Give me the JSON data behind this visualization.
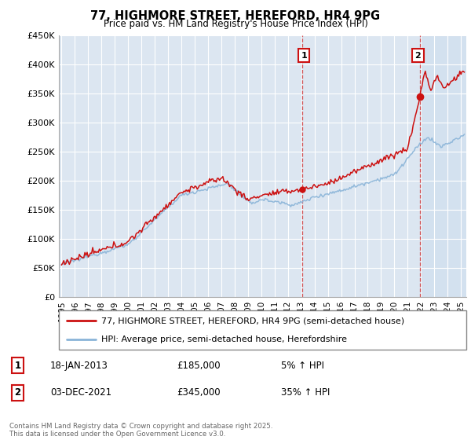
{
  "title": "77, HIGHMORE STREET, HEREFORD, HR4 9PG",
  "subtitle": "Price paid vs. HM Land Registry's House Price Index (HPI)",
  "ylim": [
    0,
    450000
  ],
  "sale1_year": 2013.05,
  "sale1_price": 185000,
  "sale2_year": 2021.92,
  "sale2_price": 345000,
  "hpi_color": "#8ab4d8",
  "price_color": "#cc1111",
  "legend_line1": "77, HIGHMORE STREET, HEREFORD, HR4 9PG (semi-detached house)",
  "legend_line2": "HPI: Average price, semi-detached house, Herefordshire",
  "footer": "Contains HM Land Registry data © Crown copyright and database right 2025.\nThis data is licensed under the Open Government Licence v3.0.",
  "bg_color": "#dce6f1",
  "shade_color": "#c5d8ee",
  "grid_color": "#ffffff",
  "ann1_date": "18-JAN-2013",
  "ann1_price": "£185,000",
  "ann1_hpi": "5% ↑ HPI",
  "ann2_date": "03-DEC-2021",
  "ann2_price": "£345,000",
  "ann2_hpi": "35% ↑ HPI"
}
